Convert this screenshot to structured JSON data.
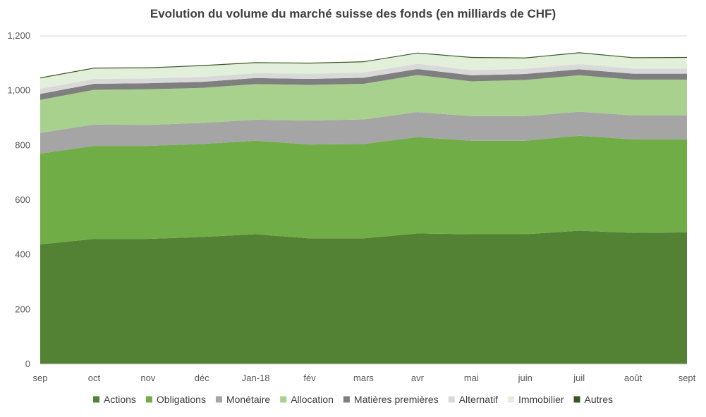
{
  "chart_data": {
    "type": "area",
    "stacked": true,
    "title": "Evolution du volume du marché suisse des fonds (en milliards de CHF)",
    "xlabel": "",
    "ylabel": "",
    "categories": [
      "sep",
      "oct",
      "nov",
      "déc",
      "Jan-18",
      "fév",
      "mars",
      "avr",
      "mai",
      "juin",
      "juil",
      "août",
      "sept"
    ],
    "ylim": [
      0,
      1200
    ],
    "yticks": [
      0,
      200,
      400,
      600,
      800,
      1000,
      1200
    ],
    "ytick_labels": [
      "0",
      "200",
      "400",
      "600",
      "800",
      "1,000",
      "1,200"
    ],
    "grid": true,
    "legend_position": "bottom",
    "series": [
      {
        "name": "Actions",
        "color": "#548235",
        "values": [
          438,
          458,
          458,
          465,
          475,
          460,
          460,
          478,
          475,
          475,
          488,
          480,
          482
        ]
      },
      {
        "name": "Obligations",
        "color": "#70AD47",
        "values": [
          332,
          340,
          340,
          340,
          342,
          343,
          345,
          352,
          342,
          342,
          347,
          342,
          340
        ]
      },
      {
        "name": "Monétaire",
        "color": "#A5A5A5",
        "values": [
          76,
          78,
          77,
          77,
          77,
          88,
          90,
          92,
          90,
          90,
          88,
          88,
          88
        ]
      },
      {
        "name": "Allocation",
        "color": "#A9D18E",
        "values": [
          120,
          127,
          130,
          128,
          130,
          130,
          130,
          135,
          127,
          132,
          133,
          130,
          130
        ]
      },
      {
        "name": "Matières premières",
        "color": "#7F7F7F",
        "values": [
          22,
          22,
          22,
          22,
          22,
          22,
          22,
          22,
          22,
          22,
          22,
          22,
          22
        ]
      },
      {
        "name": "Alternatif",
        "color": "#D9D9D9",
        "values": [
          19,
          18,
          18,
          18,
          18,
          19,
          19,
          19,
          19,
          19,
          19,
          19,
          19
        ]
      },
      {
        "name": "Immobilier",
        "color": "#E2EFDA",
        "values": [
          38,
          38,
          37,
          40,
          37,
          37,
          38,
          38,
          45,
          38,
          40,
          38,
          39
        ]
      },
      {
        "name": "Autres",
        "color": "#375623",
        "values": [
          3,
          3,
          3,
          3,
          3,
          3,
          3,
          3,
          3,
          3,
          3,
          3,
          3
        ]
      }
    ]
  }
}
